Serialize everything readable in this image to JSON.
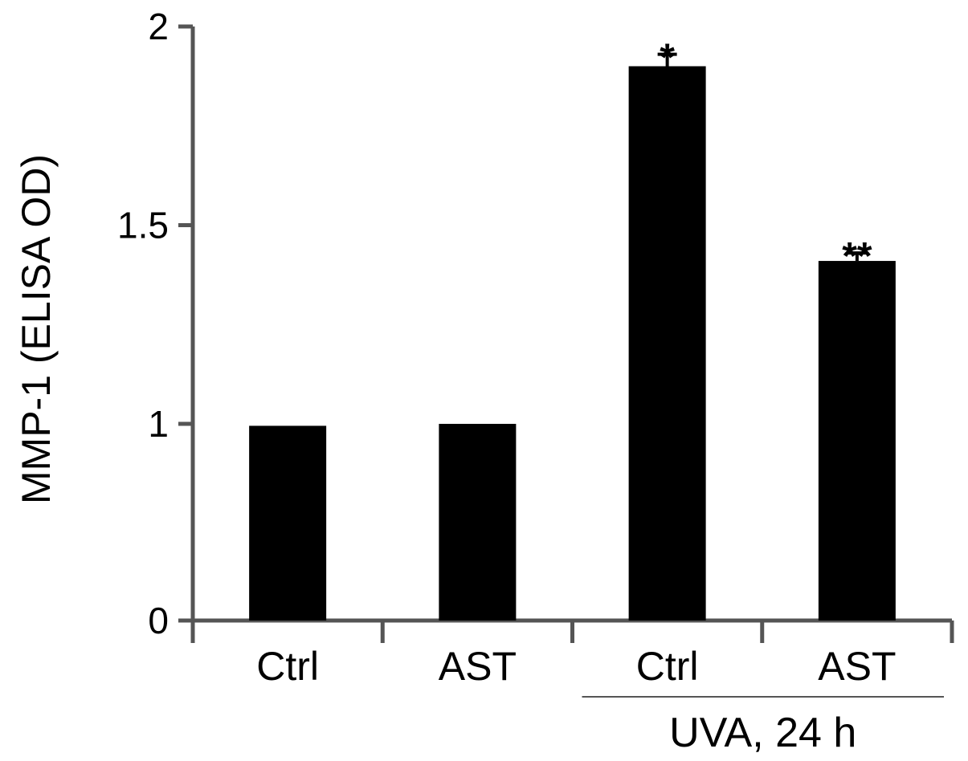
{
  "chart_data": {
    "type": "bar",
    "title": "",
    "xlabel": "",
    "ylabel": "MMP-1 (ELISA OD)",
    "categories": [
      "Ctrl",
      "AST",
      "Ctrl",
      "AST"
    ],
    "values": [
      0.99,
      1.0,
      1.9,
      1.41
    ],
    "errors": [
      0,
      0,
      0.03,
      0.02
    ],
    "annotations": [
      "",
      "",
      "*",
      "**"
    ],
    "group_label": "UVA, 24 h",
    "group_span": [
      2,
      3
    ],
    "yticks": [
      0,
      1,
      1.5,
      2
    ],
    "ytick_labels": [
      "0",
      "1",
      "1.5",
      "2"
    ],
    "ylim": [
      0,
      2
    ],
    "y_axis_break": "between 0 and 1",
    "grid": false,
    "legend": "none",
    "bar_color": "#000000"
  }
}
